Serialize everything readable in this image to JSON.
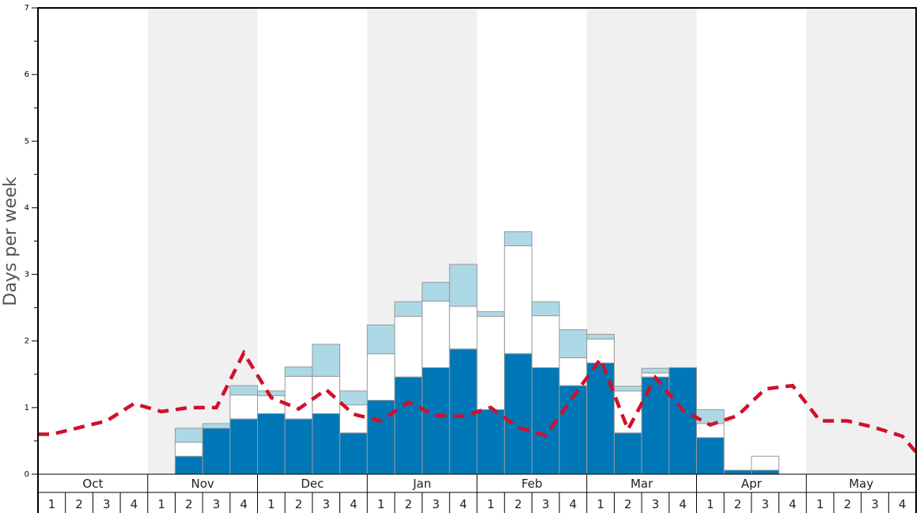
{
  "chart_data": {
    "type": "bar",
    "ylabel": "Days per week",
    "ylim": [
      0,
      7
    ],
    "yticks": [
      "0",
      "1",
      "2",
      "3",
      "4",
      "5",
      "6",
      "7"
    ],
    "months": [
      "Oct",
      "Nov",
      "Dec",
      "Jan",
      "Feb",
      "Mar",
      "Apr",
      "May"
    ],
    "week_labels": [
      "1",
      "2",
      "3",
      "4"
    ],
    "colors": {
      "series_1": "#0077b6",
      "series_2": "#ffffff",
      "series_3": "#add8e6",
      "line": "#d0102a",
      "band": "#f0f0f0",
      "bar_edge": "#999999"
    },
    "stacked_series": [
      {
        "values": [
          0,
          0,
          0,
          0,
          0,
          0.27,
          0.69,
          0.83,
          0.91,
          0.83,
          0.91,
          0.62,
          1.11,
          1.46,
          1.6,
          1.88,
          0.97,
          1.81,
          1.6,
          1.33,
          1.67,
          0.62,
          1.46,
          1.6,
          0.55,
          0.06,
          0.06,
          0,
          0,
          0,
          0,
          0
        ]
      },
      {
        "values": [
          0,
          0,
          0,
          0,
          0,
          0.21,
          0,
          0.36,
          0.27,
          0.64,
          0.56,
          0.42,
          0.7,
          0.91,
          1.0,
          0.64,
          1.4,
          1.62,
          0.78,
          0.42,
          0.36,
          0.63,
          0.06,
          0,
          0.21,
          0,
          0.21,
          0,
          0,
          0,
          0,
          0
        ]
      },
      {
        "values": [
          0,
          0,
          0,
          0,
          0,
          0.21,
          0.07,
          0.14,
          0.07,
          0.14,
          0.48,
          0.21,
          0.43,
          0.22,
          0.28,
          0.63,
          0.07,
          0.21,
          0.21,
          0.42,
          0.07,
          0.07,
          0.07,
          0,
          0.21,
          0,
          0,
          0,
          0,
          0,
          0,
          0
        ]
      }
    ],
    "line": {
      "style": "dashed",
      "values": [
        0.6,
        0.7,
        0.8,
        1.06,
        0.94,
        1.0,
        1.0,
        1.82,
        1.15,
        0.98,
        1.27,
        0.9,
        0.8,
        1.08,
        0.88,
        0.87,
        1.0,
        0.7,
        0.58,
        1.16,
        1.73,
        0.67,
        1.45,
        0.96,
        0.74,
        0.88,
        1.28,
        1.33,
        0.8,
        0.8,
        0.7,
        0.57
      ],
      "end_value": 0.33
    }
  }
}
